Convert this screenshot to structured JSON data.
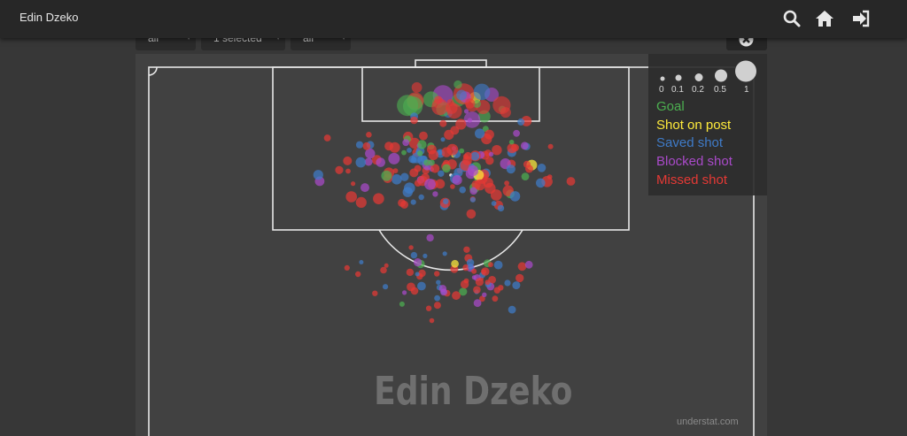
{
  "app": {
    "title": "Edin Dzeko"
  },
  "nav": {
    "search_icon": "search-icon",
    "home_icon": "home-icon",
    "login_icon": "sign-in-icon"
  },
  "filters": [
    {
      "value": "all"
    },
    {
      "value": "1 selected"
    },
    {
      "value": "all"
    }
  ],
  "legend": {
    "size_labels": [
      "0",
      "0.1",
      "0.2",
      "0.5",
      "1"
    ],
    "items": [
      {
        "label": "Goal",
        "color": "#4caf50"
      },
      {
        "label": "Shot on post",
        "color": "#ffeb3b"
      },
      {
        "label": "Saved shot",
        "color": "#3f7bc8"
      },
      {
        "label": "Blocked shot",
        "color": "#a94ac9"
      },
      {
        "label": "Missed shot",
        "color": "#e53935"
      }
    ]
  },
  "pitch": {
    "watermark": "Edin Dzeko",
    "credit": "understat.com"
  }
}
